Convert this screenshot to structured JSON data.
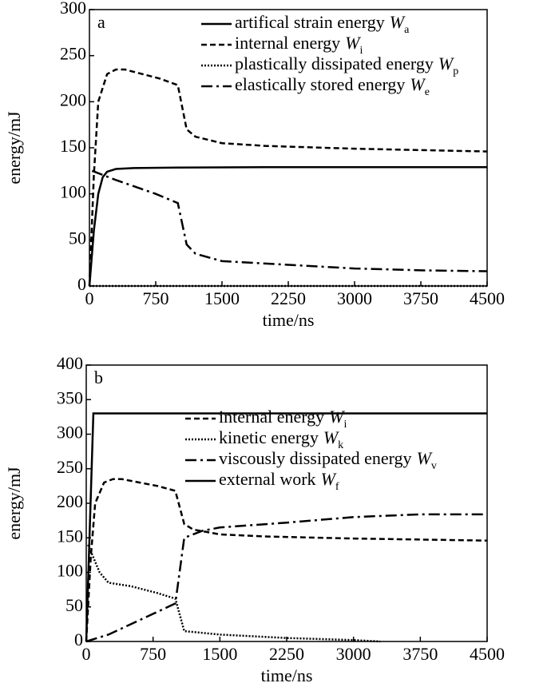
{
  "chart_data": [
    {
      "type": "line",
      "panel_label": "a",
      "xlabel": "time/ns",
      "ylabel": "energy/mJ",
      "xlim": [
        0,
        4500
      ],
      "xticks": [
        0,
        750,
        1500,
        2250,
        3000,
        3750,
        4500
      ],
      "ylim": [
        0,
        300
      ],
      "yticks": [
        0,
        50,
        100,
        150,
        200,
        250,
        300
      ],
      "legend": "upper right",
      "series": [
        {
          "name": "artifical strain energy",
          "symbol": "W",
          "subscript": "a",
          "color": "#000000",
          "dash": "solid",
          "x": [
            0,
            50,
            100,
            150,
            200,
            300,
            500,
            1000,
            2000,
            3000,
            4500
          ],
          "values": [
            0,
            60,
            100,
            118,
            124,
            127,
            128,
            128.5,
            129,
            129,
            129
          ]
        },
        {
          "name": "internal energy",
          "symbol": "W",
          "subscript": "i",
          "color": "#000000",
          "dash": "dashed",
          "x": [
            0,
            50,
            100,
            200,
            300,
            400,
            800,
            1000,
            1100,
            1200,
            1500,
            2000,
            3000,
            4500
          ],
          "values": [
            0,
            120,
            200,
            230,
            235,
            235,
            225,
            218,
            170,
            162,
            155,
            152,
            149,
            146
          ]
        },
        {
          "name": "plastically dissipated energy",
          "symbol": "W",
          "subscript": "p",
          "color": "#000000",
          "dash": "dotted",
          "x": [
            0,
            4500
          ],
          "values": [
            0,
            0
          ]
        },
        {
          "name": "elastically stored energy",
          "symbol": "W",
          "subscript": "e",
          "color": "#000000",
          "dash": "dashdot",
          "x": [
            30,
            300,
            750,
            1000,
            1100,
            1200,
            1500,
            2250,
            3000,
            3750,
            4500
          ],
          "values": [
            125,
            115,
            100,
            90,
            45,
            35,
            27,
            23,
            19,
            17,
            16
          ]
        }
      ]
    },
    {
      "type": "line",
      "panel_label": "b",
      "xlabel": "time/ns",
      "ylabel": "energy/mJ",
      "xlim": [
        0,
        4500
      ],
      "xticks": [
        0,
        750,
        1500,
        2250,
        3000,
        3750,
        4500
      ],
      "ylim": [
        0,
        400
      ],
      "yticks": [
        0,
        50,
        100,
        150,
        200,
        250,
        300,
        350,
        400
      ],
      "legend": "upper right",
      "series": [
        {
          "name": "internal energy",
          "symbol": "W",
          "subscript": "i",
          "color": "#000000",
          "dash": "dashed",
          "x": [
            0,
            50,
            100,
            200,
            300,
            400,
            800,
            1000,
            1100,
            1200,
            1500,
            2000,
            3000,
            4500
          ],
          "values": [
            0,
            120,
            200,
            230,
            235,
            235,
            225,
            218,
            170,
            162,
            155,
            152,
            149,
            146
          ]
        },
        {
          "name": "kinetic energy",
          "symbol": "W",
          "subscript": "k",
          "color": "#000000",
          "dash": "dotted",
          "x": [
            20,
            150,
            250,
            500,
            800,
            1000,
            1100,
            1500,
            2250,
            3000,
            3300
          ],
          "values": [
            140,
            100,
            85,
            80,
            70,
            62,
            15,
            10,
            5,
            2,
            0
          ]
        },
        {
          "name": "viscously dissipated energy",
          "symbol": "W",
          "subscript": "v",
          "color": "#000000",
          "dash": "dashdot",
          "x": [
            0,
            250,
            500,
            750,
            1000,
            1100,
            1300,
            1500,
            2250,
            3000,
            3750,
            4500
          ],
          "values": [
            0,
            10,
            25,
            40,
            55,
            150,
            160,
            165,
            172,
            180,
            184,
            184
          ]
        },
        {
          "name": "external work",
          "symbol": "W",
          "subscript": "f",
          "color": "#000000",
          "dash": "solid",
          "x": [
            0,
            80,
            4500
          ],
          "values": [
            0,
            330,
            330
          ]
        }
      ]
    }
  ]
}
